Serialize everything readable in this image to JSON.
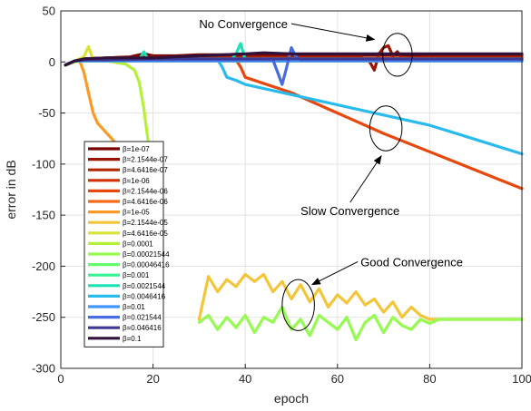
{
  "chart_data": {
    "type": "line",
    "xlabel": "epoch",
    "ylabel": "error in dB",
    "xlim": [
      0,
      100
    ],
    "ylim": [
      -300,
      50
    ],
    "xticks": [
      0,
      20,
      40,
      60,
      80,
      100
    ],
    "yticks": [
      50,
      0,
      -50,
      -100,
      -150,
      -200,
      -250,
      -300
    ],
    "grid": true,
    "legend_position": "lower-left",
    "legend_prefix": "β=",
    "series": [
      {
        "name": "1e-07",
        "color": "#7a0403",
        "x": [
          1,
          3,
          5,
          10,
          15,
          18,
          20,
          25,
          30,
          40,
          50,
          60,
          70,
          80,
          90,
          100
        ],
        "y": [
          -3,
          1,
          3,
          4,
          5,
          8,
          6,
          6,
          7,
          7,
          7,
          7,
          7,
          7,
          7,
          7
        ]
      },
      {
        "name": "2.1544e-07",
        "color": "#9a1501",
        "x": [
          1,
          3,
          5,
          10,
          20,
          30,
          40,
          50,
          60,
          65,
          67,
          68,
          69,
          70,
          71,
          72,
          73,
          74,
          80,
          90,
          100
        ],
        "y": [
          -3,
          1,
          3,
          4,
          5,
          5,
          5,
          5,
          5,
          5,
          0,
          -8,
          8,
          14,
          16,
          6,
          10,
          4,
          5,
          5,
          5
        ]
      },
      {
        "name": "4.6416e-07",
        "color": "#b42601",
        "x": [
          1,
          3,
          5,
          10,
          20,
          30,
          40,
          50,
          60,
          70,
          80,
          90,
          100
        ],
        "y": [
          -3,
          1,
          3,
          3,
          4,
          4,
          4,
          4,
          4,
          4,
          4,
          4,
          4
        ]
      },
      {
        "name": "1e-06",
        "color": "#d23105",
        "x": [
          1,
          3,
          5,
          10,
          20,
          30,
          40,
          50,
          60,
          70,
          80,
          90,
          100
        ],
        "y": [
          -3,
          1,
          2,
          2,
          3,
          3,
          3,
          3,
          3,
          3,
          3,
          3,
          3
        ]
      },
      {
        "name": "2.1544e-06",
        "color": "#e6480e",
        "x": [
          1,
          3,
          5,
          10,
          20,
          30,
          38,
          39,
          40,
          50,
          60,
          70,
          80,
          90,
          100
        ],
        "y": [
          -3,
          1,
          2,
          2,
          2,
          2,
          2,
          -5,
          -15,
          -30,
          -50,
          -70,
          -88,
          -106,
          -124
        ]
      },
      {
        "name": "4.6416e-06",
        "color": "#f66b19",
        "x": [
          1,
          3,
          5,
          10,
          20,
          30,
          40,
          50,
          60,
          70,
          80,
          90,
          100
        ],
        "y": [
          -3,
          1,
          1,
          1,
          1,
          1,
          1,
          1,
          1,
          1,
          1,
          1,
          1
        ]
      },
      {
        "name": "1e-05",
        "color": "#fb9a25",
        "x": [
          1,
          3,
          4,
          5,
          6,
          7,
          8,
          10,
          12,
          15,
          18,
          20
        ],
        "y": [
          -3,
          0,
          2,
          -10,
          -30,
          -50,
          -60,
          -70,
          -80,
          -90,
          -100,
          -110
        ]
      },
      {
        "name": "2.1544e-05",
        "color": "#f3c63a",
        "x": [
          30,
          32,
          34,
          36,
          38,
          40,
          42,
          44,
          46,
          48,
          50,
          52,
          54,
          56,
          58,
          60,
          62,
          64,
          66,
          68,
          70,
          72,
          74,
          76,
          78,
          80,
          82,
          85,
          90,
          95,
          100
        ],
        "y": [
          -252,
          -210,
          -225,
          -213,
          -220,
          -208,
          -215,
          -208,
          -225,
          -215,
          -232,
          -218,
          -235,
          -222,
          -240,
          -228,
          -236,
          -225,
          -238,
          -232,
          -245,
          -235,
          -250,
          -240,
          -248,
          -252,
          -252,
          -252,
          -252,
          -252,
          -252
        ]
      },
      {
        "name": "4.6416e-05",
        "color": "#d9e436",
        "x": [
          1,
          3,
          5,
          6,
          7,
          10,
          20,
          30,
          40,
          50,
          60,
          70,
          80,
          90,
          100
        ],
        "y": [
          -3,
          1,
          5,
          15,
          2,
          3,
          3,
          3,
          3,
          3,
          3,
          3,
          3,
          3,
          3
        ]
      },
      {
        "name": "0.0001",
        "color": "#b5f237",
        "x": [
          1,
          3,
          5,
          10,
          14,
          16,
          17,
          18,
          19,
          20
        ],
        "y": [
          -3,
          0,
          2,
          1,
          -2,
          -8,
          -20,
          -45,
          -80,
          -110
        ]
      },
      {
        "name": "0.00021544",
        "color": "#95fb51",
        "x": [
          30,
          32,
          34,
          36,
          38,
          40,
          42,
          44,
          46,
          48,
          50,
          52,
          54,
          56,
          58,
          60,
          62,
          64,
          66,
          68,
          70,
          72,
          74,
          76,
          78,
          80,
          82,
          85,
          90,
          95,
          100
        ],
        "y": [
          -255,
          -248,
          -262,
          -250,
          -260,
          -248,
          -265,
          -250,
          -255,
          -240,
          -262,
          -252,
          -268,
          -248,
          -255,
          -262,
          -250,
          -272,
          -255,
          -248,
          -265,
          -250,
          -258,
          -262,
          -252,
          -256,
          -252,
          -252,
          -252,
          -252,
          -252
        ]
      },
      {
        "name": "0.00046416",
        "color": "#64fd6a",
        "x": [
          1,
          3,
          5,
          10,
          20,
          30,
          40,
          50,
          60,
          70,
          80,
          90,
          100
        ],
        "y": [
          -3,
          1,
          1,
          1,
          1,
          1,
          1,
          1,
          1,
          1,
          1,
          1,
          1
        ]
      },
      {
        "name": "0.001",
        "color": "#35f393",
        "x": [
          1,
          3,
          5,
          10,
          20,
          30,
          40,
          50,
          60,
          70,
          80,
          90,
          100
        ],
        "y": [
          -3,
          1,
          1,
          2,
          2,
          2,
          2,
          2,
          2,
          2,
          2,
          2,
          2
        ]
      },
      {
        "name": "0.0021544",
        "color": "#1ae4b6",
        "x": [
          1,
          3,
          5,
          10,
          17,
          18,
          19,
          20,
          30,
          37,
          38,
          39,
          40,
          50,
          60,
          70,
          80,
          90,
          100
        ],
        "y": [
          -3,
          1,
          2,
          2,
          2,
          10,
          2,
          2,
          2,
          2,
          8,
          18,
          2,
          2,
          2,
          2,
          2,
          2,
          2
        ]
      },
      {
        "name": "0.0046416",
        "color": "#29bbec",
        "x": [
          1,
          3,
          5,
          10,
          20,
          30,
          34,
          35,
          36,
          38,
          40,
          50,
          60,
          70,
          80,
          90,
          100
        ],
        "y": [
          -3,
          1,
          2,
          2,
          2,
          2,
          2,
          -5,
          -15,
          -18,
          -22,
          -32,
          -42,
          -52,
          -62,
          -76,
          -90
        ]
      },
      {
        "name": "0.01",
        "color": "#4195ff",
        "x": [
          1,
          3,
          5,
          10,
          20,
          30,
          40,
          50,
          60,
          70,
          80,
          90,
          100
        ],
        "y": [
          -3,
          1,
          1,
          1,
          1,
          1,
          1,
          1,
          1,
          1,
          1,
          1,
          1
        ]
      },
      {
        "name": "0.021544",
        "color": "#466be3",
        "x": [
          1,
          3,
          5,
          10,
          20,
          30,
          40,
          46,
          47,
          48,
          49,
          50,
          51,
          52,
          60,
          70,
          80,
          90,
          100
        ],
        "y": [
          -3,
          1,
          2,
          2,
          2,
          2,
          2,
          2,
          -10,
          -22,
          -5,
          14,
          5,
          2,
          2,
          2,
          2,
          2,
          2
        ]
      },
      {
        "name": "0.046416",
        "color": "#3e3994",
        "x": [
          1,
          3,
          5,
          10,
          20,
          30,
          40,
          50,
          60,
          70,
          80,
          90,
          100
        ],
        "y": [
          -3,
          1,
          2,
          2,
          3,
          3,
          3,
          3,
          3,
          3,
          3,
          3,
          3
        ]
      },
      {
        "name": "0.1",
        "color": "#30123b",
        "x": [
          1,
          3,
          5,
          10,
          20,
          30,
          40,
          44,
          50,
          60,
          70,
          80,
          90,
          100
        ],
        "y": [
          -3,
          1,
          3,
          4,
          4,
          6,
          8,
          9,
          8,
          8,
          8,
          8,
          8,
          8
        ]
      }
    ],
    "annotations": [
      {
        "text": "No Convergence",
        "text_x": 30,
        "text_y": 33,
        "arrow_to_x": 68,
        "arrow_to_y": 22,
        "ellipse": {
          "cx": 73,
          "cy": 7,
          "rx": 3.2,
          "ry": 21
        }
      },
      {
        "text": "Slow Convergence",
        "text_x": 52,
        "text_y": -150,
        "arrow_to_x": 69.5,
        "arrow_to_y": -92,
        "ellipse": {
          "cx": 70.5,
          "cy": -65,
          "rx": 3.5,
          "ry": 22
        }
      },
      {
        "text": "Good Convergence",
        "text_x": 65,
        "text_y": -200,
        "arrow_to_x": 54.5,
        "arrow_to_y": -218,
        "ellipse": {
          "cx": 51.5,
          "cy": -238,
          "rx": 3.5,
          "ry": 25
        }
      }
    ]
  }
}
